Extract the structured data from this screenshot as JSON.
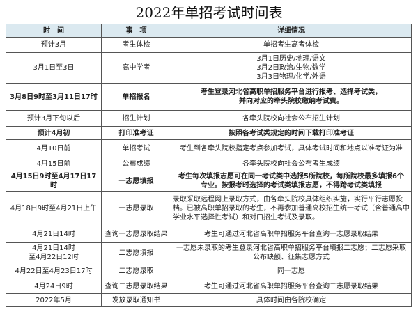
{
  "title": "2022年单招考试时间表",
  "headers": [
    "时　间",
    "事　项",
    "详细情况"
  ],
  "rows": [
    {
      "time": "预计3月",
      "item": "考生体检",
      "detail": "单招考生高考体检",
      "bold": false
    },
    {
      "time": "3月1日至3日",
      "item": "高中学考",
      "detail": "3月1日历史/地理/语文\n3月2日政治/生物/数学\n3月3日物理/化学/外语",
      "bold": false
    },
    {
      "time": "3月8日9时至3月11日17时",
      "item": "单招报名",
      "detail": "考生登录河北省高职单招服务平台进行报考、选择考试类，\n并向对应的牵头院校缴纳考试费。",
      "bold": true
    },
    {
      "time": "预计3月下旬以后",
      "item": "招生计划",
      "detail": "各牵头院校向社会公布招生计划",
      "bold": false
    },
    {
      "time": "预计4月初",
      "item": "打印准考证",
      "detail": "按照各考试类规定的时间下载打印准考证",
      "bold": true
    },
    {
      "time": "4月10日前",
      "item": "单招考试",
      "detail": "考生到各牵头院校指定考点参加考试，具体考试时间和地点以准考证为准",
      "bold": false
    },
    {
      "time": "4月15日前",
      "item": "公布成绩",
      "detail": "各牵头院校向社会公布考生成绩",
      "bold": false
    },
    {
      "time": "4月15日9时至4月17日17时",
      "item": "一志愿填报",
      "detail": "考生每次填报志愿可在同一考试类中选报5所院校，每所院校最多填报6个\n专业。按报考时选择的考试类填报志愿，不得跨考试类填报",
      "bold": true
    },
    {
      "time": "4月18日9时至4月21日上午",
      "item": "一志愿录取",
      "detail": "录取采取远程网上录取方式，由各牵头院校具体组织实施，实行平行志愿投档。已被高职单招录取的考生，不再参加普通高校招生统一考试（含普通高中学业水平选择性考试）和对口招生考试及录取。",
      "bold": false
    },
    {
      "time": "4月21日14时",
      "item": "查询一志愿录取结果",
      "detail": "考生可通过河北省高职单招服务平台查询一志愿录取结果",
      "bold": false
    },
    {
      "time": "4月21日14时\n至4月22日12时",
      "item": "二志愿填报",
      "detail": "一志愿未录取的考生登录河北省高职单招服务平台填报二志愿；二志愿采取\n公布缺额、征集志愿方式",
      "bold": false
    },
    {
      "time": "4月22日至4月23日17时",
      "item": "二志愿录取",
      "detail": "同一志愿",
      "bold": false
    },
    {
      "time": "4月24日9时",
      "item": "查询二志愿录取结果",
      "detail": "考生可通过河北省高职单招服务平台查询二志愿录取结果",
      "bold": false
    },
    {
      "time": "2022年5月",
      "item": "发放录取通知书",
      "detail": "具体时间由各院校确定",
      "bold": false
    }
  ]
}
